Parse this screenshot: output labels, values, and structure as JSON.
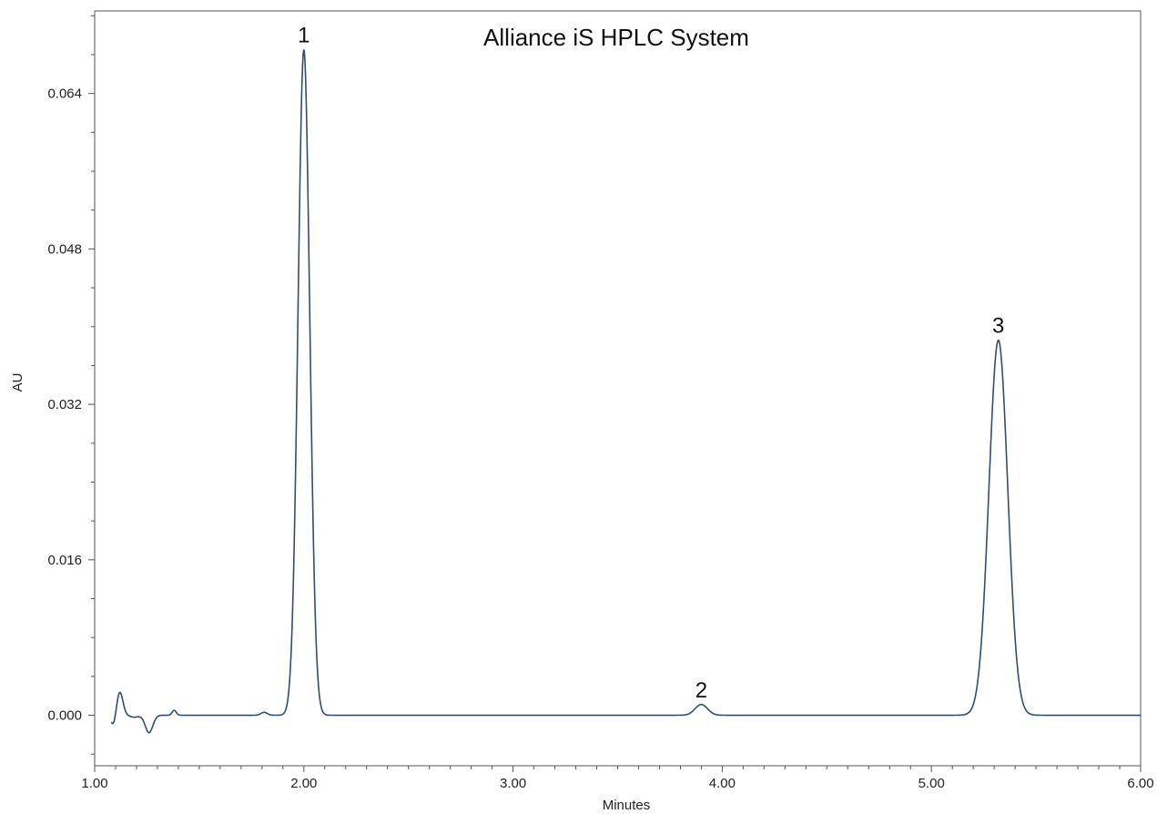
{
  "chart_data": {
    "type": "line",
    "title": "Alliance iS HPLC System",
    "xlabel": "Minutes",
    "ylabel": "AU",
    "xlim": [
      1.0,
      6.0
    ],
    "ylim": [
      -0.0052,
      0.0725
    ],
    "x_ticks": [
      "1.00",
      "2.00",
      "3.00",
      "4.00",
      "5.00",
      "6.00"
    ],
    "y_ticks": [
      "0.000",
      "0.016",
      "0.032",
      "0.048",
      "0.064"
    ],
    "grid": false,
    "series": [
      {
        "color": "#2f4f6f",
        "peaks": [
          {
            "label": "1",
            "x": 2.0,
            "y": 0.0685
          },
          {
            "label": "2",
            "x": 3.9,
            "y": 0.0011
          },
          {
            "label": "3",
            "x": 5.32,
            "y": 0.0386
          }
        ],
        "baseline_features": [
          {
            "x": 1.09,
            "y": -0.0011
          },
          {
            "x": 1.12,
            "y": 0.0024
          },
          {
            "x": 1.19,
            "y": -0.0002
          },
          {
            "x": 1.26,
            "y": -0.0018
          },
          {
            "x": 1.38,
            "y": 0.0005
          },
          {
            "x": 1.81,
            "y": 0.0003
          }
        ]
      }
    ]
  }
}
